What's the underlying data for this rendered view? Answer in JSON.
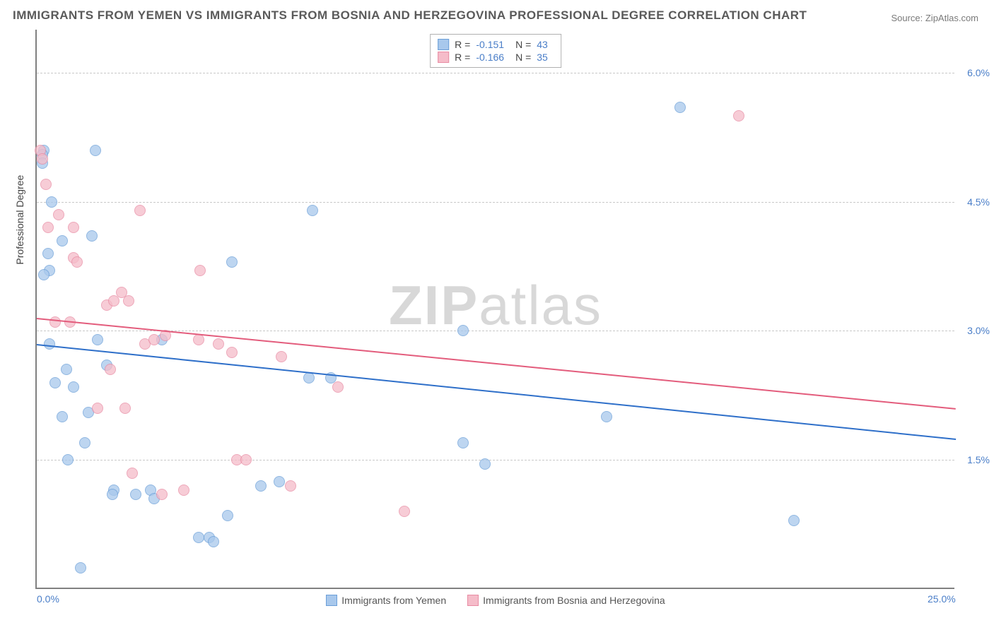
{
  "title": "IMMIGRANTS FROM YEMEN VS IMMIGRANTS FROM BOSNIA AND HERZEGOVINA PROFESSIONAL DEGREE CORRELATION CHART",
  "source": "Source: ZipAtlas.com",
  "watermark_zip": "ZIP",
  "watermark_atlas": "atlas",
  "y_axis_label": "Professional Degree",
  "xlim": [
    0,
    25
  ],
  "ylim": [
    0,
    6.5
  ],
  "x_ticks": [
    {
      "val": 0.0,
      "label": "0.0%"
    },
    {
      "val": 25.0,
      "label": "25.0%"
    }
  ],
  "y_ticks": [
    {
      "val": 1.5,
      "label": "1.5%"
    },
    {
      "val": 3.0,
      "label": "3.0%"
    },
    {
      "val": 4.5,
      "label": "4.5%"
    },
    {
      "val": 6.0,
      "label": "6.0%"
    }
  ],
  "series": [
    {
      "name": "Immigrants from Yemen",
      "fill_color": "#a8c8ec",
      "stroke_color": "#6b9fd8",
      "line_color": "#2e6fc9",
      "r_label": "R =",
      "r_value": "-0.151",
      "n_label": "N =",
      "n_value": "43",
      "trend": {
        "x1": 0,
        "y1": 2.85,
        "x2": 25,
        "y2": 1.75
      },
      "points": [
        {
          "x": 0.2,
          "y": 5.1
        },
        {
          "x": 0.15,
          "y": 5.05
        },
        {
          "x": 0.4,
          "y": 4.5
        },
        {
          "x": 1.6,
          "y": 5.1
        },
        {
          "x": 0.3,
          "y": 3.9
        },
        {
          "x": 0.35,
          "y": 3.7
        },
        {
          "x": 0.2,
          "y": 3.65
        },
        {
          "x": 5.3,
          "y": 3.8
        },
        {
          "x": 0.35,
          "y": 2.85
        },
        {
          "x": 1.65,
          "y": 2.9
        },
        {
          "x": 7.5,
          "y": 4.4
        },
        {
          "x": 0.8,
          "y": 2.55
        },
        {
          "x": 1.0,
          "y": 2.35
        },
        {
          "x": 1.9,
          "y": 2.6
        },
        {
          "x": 0.7,
          "y": 2.0
        },
        {
          "x": 1.4,
          "y": 2.05
        },
        {
          "x": 0.85,
          "y": 1.5
        },
        {
          "x": 1.3,
          "y": 1.7
        },
        {
          "x": 2.1,
          "y": 1.15
        },
        {
          "x": 2.7,
          "y": 1.1
        },
        {
          "x": 3.1,
          "y": 1.15
        },
        {
          "x": 3.2,
          "y": 1.05
        },
        {
          "x": 4.4,
          "y": 0.6
        },
        {
          "x": 4.7,
          "y": 0.6
        },
        {
          "x": 5.2,
          "y": 0.85
        },
        {
          "x": 6.1,
          "y": 1.2
        },
        {
          "x": 7.4,
          "y": 2.45
        },
        {
          "x": 8.0,
          "y": 2.45
        },
        {
          "x": 11.6,
          "y": 3.0
        },
        {
          "x": 11.6,
          "y": 1.7
        },
        {
          "x": 12.2,
          "y": 1.45
        },
        {
          "x": 15.5,
          "y": 2.0
        },
        {
          "x": 17.5,
          "y": 5.6
        },
        {
          "x": 20.6,
          "y": 0.8
        },
        {
          "x": 1.2,
          "y": 0.25
        },
        {
          "x": 0.7,
          "y": 4.05
        },
        {
          "x": 1.5,
          "y": 4.1
        },
        {
          "x": 2.05,
          "y": 1.1
        },
        {
          "x": 4.8,
          "y": 0.55
        },
        {
          "x": 3.4,
          "y": 2.9
        },
        {
          "x": 6.6,
          "y": 1.25
        },
        {
          "x": 0.5,
          "y": 2.4
        },
        {
          "x": 0.15,
          "y": 4.95
        }
      ]
    },
    {
      "name": "Immigrants from Bosnia and Herzegovina",
      "fill_color": "#f5bcc9",
      "stroke_color": "#e88ba3",
      "line_color": "#e35c7c",
      "r_label": "R =",
      "r_value": "-0.166",
      "n_label": "N =",
      "n_value": "35",
      "trend": {
        "x1": 0,
        "y1": 3.15,
        "x2": 25,
        "y2": 2.1
      },
      "points": [
        {
          "x": 0.1,
          "y": 5.1
        },
        {
          "x": 0.25,
          "y": 4.7
        },
        {
          "x": 0.3,
          "y": 4.2
        },
        {
          "x": 0.6,
          "y": 4.35
        },
        {
          "x": 1.0,
          "y": 4.2
        },
        {
          "x": 1.0,
          "y": 3.85
        },
        {
          "x": 1.1,
          "y": 3.8
        },
        {
          "x": 2.3,
          "y": 3.45
        },
        {
          "x": 2.8,
          "y": 4.4
        },
        {
          "x": 1.9,
          "y": 3.3
        },
        {
          "x": 2.1,
          "y": 3.35
        },
        {
          "x": 0.5,
          "y": 3.1
        },
        {
          "x": 0.9,
          "y": 3.1
        },
        {
          "x": 2.0,
          "y": 2.55
        },
        {
          "x": 2.95,
          "y": 2.85
        },
        {
          "x": 3.2,
          "y": 2.9
        },
        {
          "x": 3.5,
          "y": 2.95
        },
        {
          "x": 4.45,
          "y": 3.7
        },
        {
          "x": 4.4,
          "y": 2.9
        },
        {
          "x": 4.95,
          "y": 2.85
        },
        {
          "x": 1.65,
          "y": 2.1
        },
        {
          "x": 2.4,
          "y": 2.1
        },
        {
          "x": 2.6,
          "y": 1.35
        },
        {
          "x": 3.4,
          "y": 1.1
        },
        {
          "x": 4.0,
          "y": 1.15
        },
        {
          "x": 5.45,
          "y": 1.5
        },
        {
          "x": 5.7,
          "y": 1.5
        },
        {
          "x": 6.9,
          "y": 1.2
        },
        {
          "x": 6.65,
          "y": 2.7
        },
        {
          "x": 8.2,
          "y": 2.35
        },
        {
          "x": 10.0,
          "y": 0.9
        },
        {
          "x": 19.1,
          "y": 5.5
        },
        {
          "x": 0.15,
          "y": 5.0
        },
        {
          "x": 2.5,
          "y": 3.35
        },
        {
          "x": 5.3,
          "y": 2.75
        }
      ]
    }
  ],
  "background_color": "#ffffff",
  "grid_color": "#c8c8c8",
  "title_color": "#5a5a5a",
  "axis_label_color": "#444444",
  "tick_label_color": "#4a7ec8"
}
